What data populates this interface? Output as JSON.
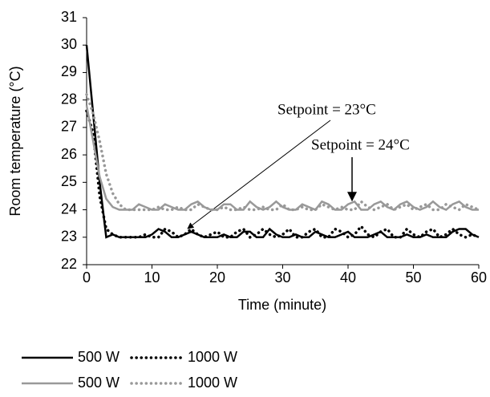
{
  "chart_data": {
    "type": "line",
    "x_label": "Time (minute)",
    "y_label": "Room temperature (°C)",
    "annotations": [
      "Setpoint = 23°C",
      "Setpoint = 24°C"
    ],
    "x": [
      0,
      1,
      2,
      3,
      4,
      5,
      6,
      7,
      8,
      9,
      10,
      11,
      12,
      13,
      14,
      15,
      16,
      17,
      18,
      19,
      20,
      21,
      22,
      23,
      24,
      25,
      26,
      27,
      28,
      29,
      30,
      31,
      32,
      33,
      34,
      35,
      36,
      37,
      38,
      39,
      40,
      41,
      42,
      43,
      44,
      45,
      46,
      47,
      48,
      49,
      50,
      51,
      52,
      53,
      54,
      55,
      56,
      57,
      58,
      59,
      60
    ],
    "xlim": [
      0,
      60
    ],
    "xticks": [
      0,
      10,
      20,
      30,
      40,
      50,
      60
    ],
    "ylim": [
      22,
      31
    ],
    "yticks": [
      22,
      23,
      24,
      25,
      26,
      27,
      28,
      29,
      30,
      31
    ],
    "grid": false,
    "legend": "bottom",
    "series": [
      {
        "name": "500 W",
        "color": "#000000",
        "style": "solid",
        "values": [
          30,
          27.5,
          25,
          23,
          23.1,
          23,
          23,
          23,
          23,
          23,
          23.1,
          23.3,
          23.2,
          23,
          23,
          23.1,
          23.2,
          23.1,
          23,
          23,
          23,
          23.1,
          23,
          23,
          23.2,
          23.2,
          23,
          23,
          23.3,
          23.1,
          23,
          23,
          23.1,
          23,
          23,
          23.2,
          23.1,
          23,
          23,
          23.1,
          23.2,
          23,
          23,
          23,
          23.1,
          23.2,
          23,
          23,
          23,
          23.1,
          23,
          23,
          23.1,
          23,
          23,
          23,
          23.2,
          23.3,
          23.3,
          23.1,
          23
        ]
      },
      {
        "name": "1000 W",
        "color": "#000000",
        "style": "dotted",
        "values": [
          27.6,
          26.8,
          24.5,
          23.3,
          23.1,
          23,
          23,
          23,
          23,
          23.1,
          23,
          23,
          23.3,
          23.2,
          23,
          23.1,
          23.3,
          23.1,
          23,
          23.1,
          23.2,
          23,
          23,
          23.2,
          23.3,
          23,
          23.1,
          23.3,
          23.1,
          23,
          23.1,
          23.3,
          23,
          23,
          23.2,
          23.3,
          23,
          23,
          23.3,
          23.2,
          23,
          23.1,
          23.4,
          23.1,
          23,
          23.2,
          23.3,
          23,
          23,
          23.3,
          23.1,
          23,
          23.2,
          23.3,
          23,
          23.1,
          23.3,
          23.1,
          23,
          23.1,
          23
        ]
      },
      {
        "name": "500 W",
        "color": "#999999",
        "style": "solid",
        "values": [
          27.8,
          26.5,
          25.2,
          24.4,
          24.1,
          24,
          24,
          24,
          24.2,
          24.1,
          24,
          24,
          24.2,
          24.1,
          24,
          24,
          24.2,
          24.3,
          24.1,
          24,
          24,
          24.2,
          24.2,
          24,
          24,
          24.3,
          24.1,
          24,
          24.1,
          24.3,
          24.1,
          24,
          24,
          24.2,
          24.1,
          24,
          24.3,
          24.2,
          24,
          24,
          24.2,
          24.3,
          24,
          24,
          24.2,
          24.3,
          24.1,
          24,
          24.2,
          24.3,
          24.1,
          24,
          24.1,
          24.3,
          24.1,
          24,
          24.2,
          24.3,
          24.1,
          24,
          24
        ]
      },
      {
        "name": "1000 W",
        "color": "#999999",
        "style": "dotted",
        "values": [
          28.2,
          27.5,
          26.5,
          25.3,
          24.6,
          24.2,
          24,
          24,
          24,
          24,
          24,
          24.1,
          24,
          24,
          24.1,
          24,
          24,
          24.2,
          24.1,
          24,
          24,
          24.1,
          24,
          24,
          24.1,
          24,
          24,
          24.1,
          24,
          24,
          24.2,
          24,
          24,
          24.1,
          24,
          24,
          24.2,
          24.1,
          24,
          24.1,
          24,
          24,
          24.3,
          24.1,
          24,
          24.1,
          24.2,
          24,
          24.1,
          24.2,
          24,
          24.1,
          24.2,
          24,
          24,
          24.2,
          24.1,
          24,
          24.2,
          24.1,
          24
        ]
      }
    ]
  }
}
